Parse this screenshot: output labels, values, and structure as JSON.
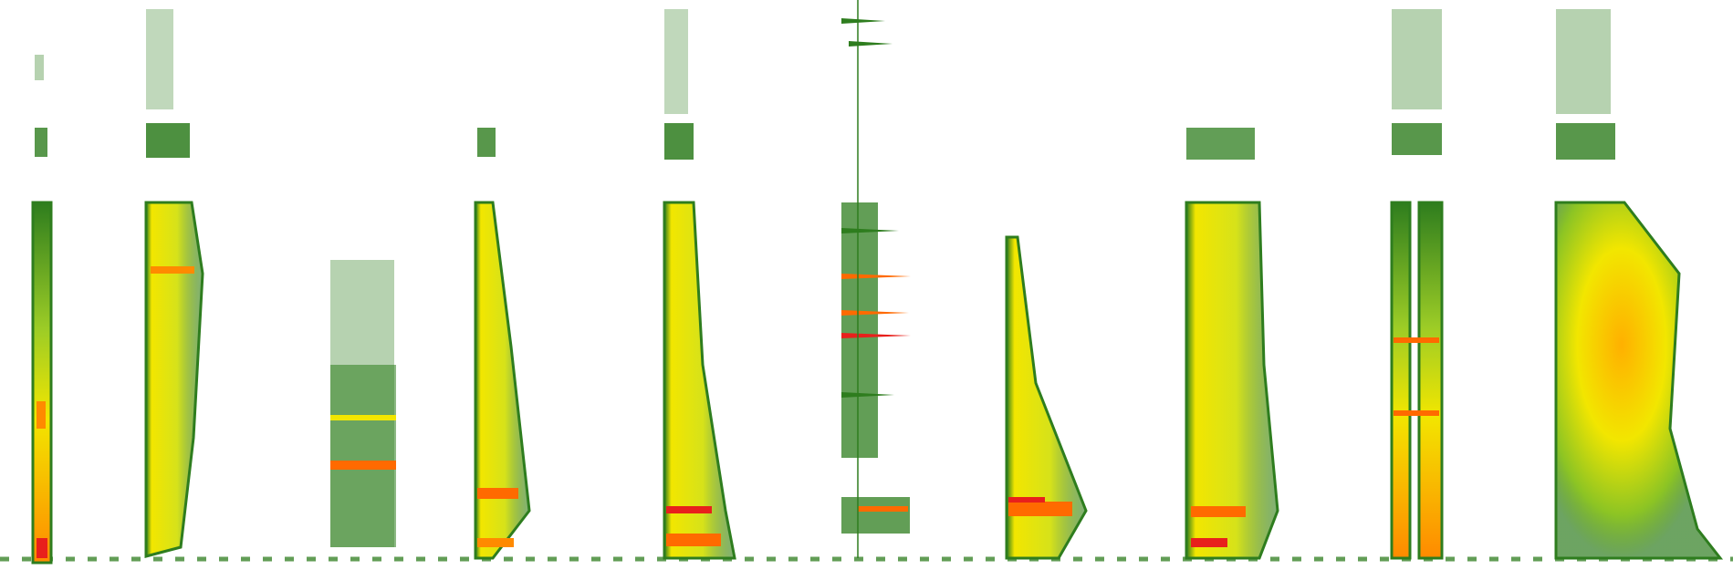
{
  "image": {
    "kind": "spectrogram",
    "background": "#ffffff",
    "palette": {
      "low": "#2e7d1e",
      "mid": "#7fb81f",
      "high": "#f2e600",
      "peak": "#ff6a00",
      "max": "#e8201c"
    }
  },
  "segments": [
    {
      "id": "seg-1",
      "shape": "narrow-column",
      "hot_zones": [
        "bottom"
      ]
    },
    {
      "id": "seg-2",
      "shape": "broad-tapered",
      "hot_zones": [
        "upper-mid"
      ]
    },
    {
      "id": "seg-3",
      "shape": "sparse-striped",
      "hot_zones": [
        "low-band"
      ]
    },
    {
      "id": "seg-4",
      "shape": "tapered",
      "hot_zones": [
        "bottom"
      ]
    },
    {
      "id": "seg-5",
      "shape": "tapered",
      "hot_zones": [
        "bottom"
      ]
    },
    {
      "id": "seg-6",
      "shape": "comb-peaks",
      "hot_zones": [
        "mid",
        "bottom"
      ]
    },
    {
      "id": "seg-7",
      "shape": "harmonic-stack",
      "hot_zones": [
        "bottom"
      ]
    },
    {
      "id": "seg-8",
      "shape": "wide-ridged",
      "hot_zones": [
        "bottom"
      ]
    },
    {
      "id": "seg-9",
      "shape": "double-column",
      "hot_zones": [
        "mid"
      ]
    },
    {
      "id": "seg-10",
      "shape": "wide-blob",
      "hot_zones": [
        "center"
      ]
    }
  ]
}
